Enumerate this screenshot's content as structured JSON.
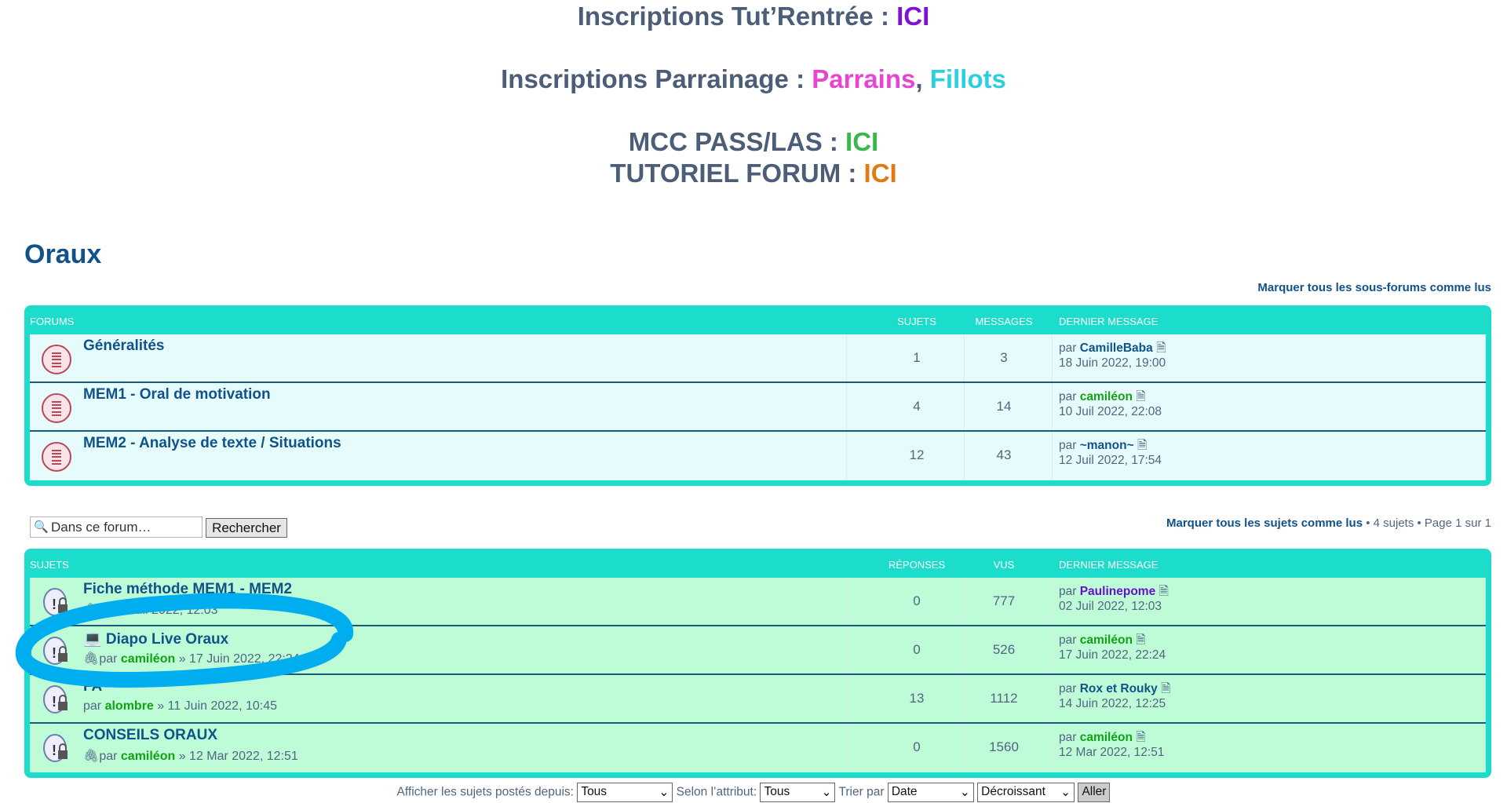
{
  "announcements": {
    "line1": {
      "label": "Inscriptions Tut’Rentrée : ",
      "link": "ICI"
    },
    "line2": {
      "label": "Inscriptions Parrainage : ",
      "link1": "Parrains",
      "sep": ", ",
      "link2": "Fillots"
    },
    "line3": {
      "label": "MCC PASS/LAS : ",
      "link": "ICI"
    },
    "line4": {
      "label": "TUTORIEL FORUM : ",
      "link": "ICI"
    }
  },
  "page_title": "Oraux",
  "mark_subforums": "Marquer tous les sous-forums comme lus",
  "forums": {
    "headers": {
      "name": "Forums",
      "topics": "Sujets",
      "posts": "Messages",
      "last": "Dernier message"
    },
    "rows": [
      {
        "title": "Généralités",
        "topics": "1",
        "posts": "3",
        "by": "par ",
        "user": "CamilleBaba",
        "date": "18 Juin 2022, 19:00"
      },
      {
        "title": "MEM1 - Oral de motivation",
        "topics": "4",
        "posts": "14",
        "by": "par ",
        "user": "camiléon",
        "date": "10 Juil 2022, 22:08"
      },
      {
        "title": "MEM2 - Analyse de texte / Situations",
        "topics": "12",
        "posts": "43",
        "by": "par ",
        "user": "~manon~",
        "date": "12 Juil 2022, 17:54"
      }
    ]
  },
  "search": {
    "placeholder": "Dans ce forum…",
    "button": "Rechercher"
  },
  "pagination": {
    "mark_topics": "Marquer tous les sujets comme lus",
    "info": " • 4 sujets • Page 1 sur 1"
  },
  "topics": {
    "headers": {
      "name": "Sujets",
      "replies": "Réponses",
      "views": "Vus",
      "last": "Dernier message"
    },
    "rows": [
      {
        "title": "Fiche méthode MEM1 - MEM2",
        "by": "par ",
        "author": "P",
        "meta": "Juil 2022, 12:03",
        "replies": "0",
        "views": "777",
        "lby": "par ",
        "luser": "Paulinepome",
        "ldate": "02 Juil 2022, 12:03"
      },
      {
        "title": "💻 Diapo Live Oraux",
        "by": "par ",
        "author": "camiléon",
        "meta": " » 17 Juin 2022, 22:24",
        "replies": "0",
        "views": "526",
        "lby": "par ",
        "luser": "camiléon",
        "ldate": "17 Juin 2022, 22:24"
      },
      {
        "title": "FA",
        "by": "par ",
        "author": "alombre",
        "meta": " » 11 Juin 2022, 10:45",
        "replies": "13",
        "views": "1112",
        "lby": "par ",
        "luser": "Rox et Rouky",
        "ldate": "14 Juin 2022, 12:25"
      },
      {
        "title": "CONSEILS ORAUX",
        "by": "par ",
        "author": "camiléon",
        "meta": " » 12 Mar 2022, 12:51",
        "replies": "0",
        "views": "1560",
        "lby": "par ",
        "luser": "camiléon",
        "ldate": "12 Mar 2022, 12:51"
      }
    ]
  },
  "filters": {
    "since_label": "Afficher les sujets postés depuis:",
    "since": "Tous",
    "attr_label": "Selon l’attribut:",
    "attr": "Tous",
    "sort_label": "Trier par",
    "sort": "Date",
    "order": "Décroissant",
    "go": "Aller"
  },
  "colors": {
    "box": "#1cdccb",
    "forum_row": "#e6fbfb",
    "topic_row": "#bdfcd7",
    "link": "#105289",
    "annotation": "#00aeef"
  }
}
